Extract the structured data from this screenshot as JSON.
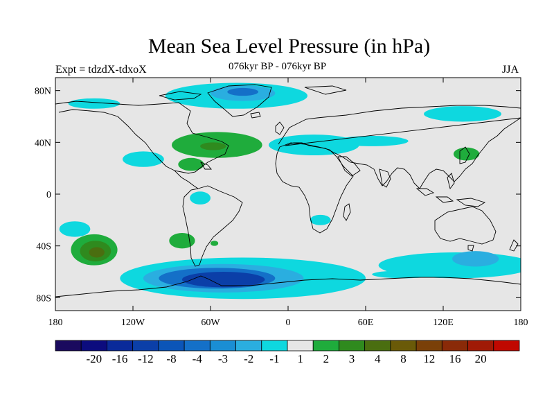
{
  "title": "Mean Sea Level Pressure (in hPa)",
  "left_label": "Expt = tdzdX-tdxoX",
  "center_label": "076kyr BP - 076kyr BP",
  "right_label": "JJA",
  "lat_ticks": [
    {
      "value": 80,
      "label": "80N"
    },
    {
      "value": 40,
      "label": "40N"
    },
    {
      "value": 0,
      "label": "0"
    },
    {
      "value": -40,
      "label": "40S"
    },
    {
      "value": -80,
      "label": "80S"
    }
  ],
  "lon_ticks": [
    {
      "value": -180,
      "label": "180"
    },
    {
      "value": -120,
      "label": "120W"
    },
    {
      "value": -60,
      "label": "60W"
    },
    {
      "value": 0,
      "label": "0"
    },
    {
      "value": 60,
      "label": "60E"
    },
    {
      "value": 120,
      "label": "120E"
    },
    {
      "value": 180,
      "label": "180"
    }
  ],
  "colorbar": {
    "colors": [
      "#1a0a5e",
      "#0c0c7e",
      "#0a2a9a",
      "#0b3fa8",
      "#0b55b8",
      "#1470c8",
      "#1a8ed4",
      "#2aaee0",
      "#0ed8df",
      "#e6e6e6",
      "#1fac3c",
      "#2f8a1e",
      "#4a6e10",
      "#6a5a08",
      "#7a4008",
      "#8a2a08",
      "#a01a06",
      "#c00800"
    ],
    "labels": [
      "-20",
      "-16",
      "-12",
      "-8",
      "-4",
      "-3",
      "-2",
      "-1",
      "1",
      "2",
      "3",
      "4",
      "8",
      "12",
      "16",
      "20"
    ]
  },
  "map": {
    "background_color": "#e6e6e6",
    "coast_color": "#000000"
  },
  "anomaly_regions": [
    {
      "level": "-1",
      "color": "#0ed8df",
      "lon": -35,
      "lat": -65,
      "rx": 95,
      "ry": 16
    },
    {
      "level": "-2",
      "color": "#2aaee0",
      "lon": -50,
      "lat": -65,
      "rx": 62,
      "ry": 11
    },
    {
      "level": "-3",
      "color": "#1470c8",
      "lon": -55,
      "lat": -65,
      "rx": 45,
      "ry": 8
    },
    {
      "level": "-4",
      "color": "#0b3fa8",
      "lon": -50,
      "lat": -66,
      "rx": 32,
      "ry": 6
    },
    {
      "level": "-1",
      "color": "#0ed8df",
      "lon": 130,
      "lat": -55,
      "rx": 60,
      "ry": 10
    },
    {
      "level": "-2",
      "color": "#2aaee0",
      "lon": 145,
      "lat": -50,
      "rx": 18,
      "ry": 6
    },
    {
      "level": "-1",
      "color": "#0ed8df",
      "lon": 90,
      "lat": -62,
      "rx": 25,
      "ry": 3
    },
    {
      "level": "-1",
      "color": "#0ed8df",
      "lon": -40,
      "lat": 76,
      "rx": 55,
      "ry": 10
    },
    {
      "level": "-2",
      "color": "#2aaee0",
      "lon": -35,
      "lat": 78,
      "rx": 25,
      "ry": 6
    },
    {
      "level": "-3",
      "color": "#1470c8",
      "lon": -35,
      "lat": 79,
      "rx": 12,
      "ry": 3
    },
    {
      "level": "-1",
      "color": "#0ed8df",
      "lon": -150,
      "lat": 70,
      "rx": 20,
      "ry": 4
    },
    {
      "level": "-1",
      "color": "#0ed8df",
      "lon": 20,
      "lat": 38,
      "rx": 35,
      "ry": 8
    },
    {
      "level": "-1",
      "color": "#0ed8df",
      "lon": 65,
      "lat": 41,
      "rx": 28,
      "ry": 4
    },
    {
      "level": "-1",
      "color": "#0ed8df",
      "lon": 135,
      "lat": 62,
      "rx": 30,
      "ry": 6
    },
    {
      "level": "-1",
      "color": "#0ed8df",
      "lon": -112,
      "lat": 27,
      "rx": 16,
      "ry": 6
    },
    {
      "level": "-1",
      "color": "#0ed8df",
      "lon": -165,
      "lat": -27,
      "rx": 12,
      "ry": 6
    },
    {
      "level": "-1",
      "color": "#0ed8df",
      "lon": -68,
      "lat": -3,
      "rx": 8,
      "ry": 5
    },
    {
      "level": "-1",
      "color": "#0ed8df",
      "lon": 25,
      "lat": -20,
      "rx": 8,
      "ry": 4
    },
    {
      "level": "1",
      "color": "#1fac3c",
      "lon": -55,
      "lat": 38,
      "rx": 35,
      "ry": 10
    },
    {
      "level": "2",
      "color": "#2f8a1e",
      "lon": -58,
      "lat": 37,
      "rx": 10,
      "ry": 3
    },
    {
      "level": "1",
      "color": "#1fac3c",
      "lon": -150,
      "lat": -43,
      "rx": 18,
      "ry": 12
    },
    {
      "level": "2",
      "color": "#2f8a1e",
      "lon": -149,
      "lat": -44,
      "rx": 12,
      "ry": 8
    },
    {
      "level": "3",
      "color": "#4a6e10",
      "lon": -148,
      "lat": -45,
      "rx": 6,
      "ry": 4
    },
    {
      "level": "1",
      "color": "#1fac3c",
      "lon": -82,
      "lat": -36,
      "rx": 10,
      "ry": 6
    },
    {
      "level": "1",
      "color": "#1fac3c",
      "lon": -75,
      "lat": 23,
      "rx": 10,
      "ry": 5
    },
    {
      "level": "1",
      "color": "#1fac3c",
      "lon": 138,
      "lat": 31,
      "rx": 10,
      "ry": 5
    },
    {
      "level": "1",
      "color": "#1fac3c",
      "lon": -57,
      "lat": -38,
      "rx": 3,
      "ry": 2
    }
  ]
}
